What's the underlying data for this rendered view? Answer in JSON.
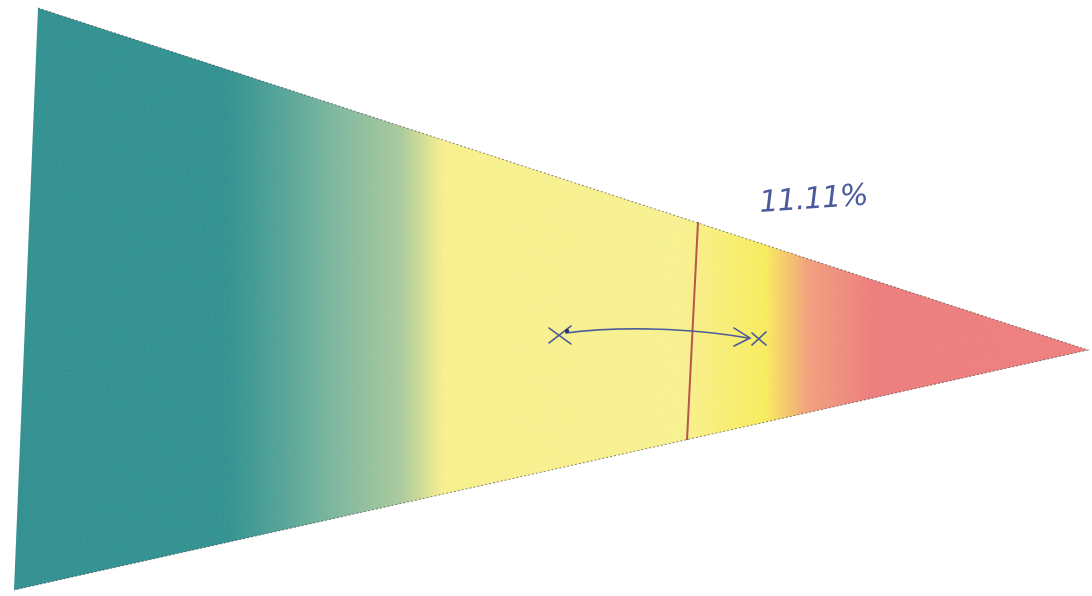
{
  "annotation": {
    "label": "11.11%",
    "value_percent": 11.11
  },
  "colors": {
    "teal": "#1a8c8c",
    "sea_green": "#7fb9a0",
    "yellow": "#fbf48f",
    "bright_yellow": "#fbf060",
    "salmon": "#f0787a",
    "marker_line": "#b8564a",
    "pen_ink": "#4a5a9a"
  },
  "gradient_stops": [
    {
      "color": "#1a8f90",
      "at": 0.0
    },
    {
      "color": "#1f9190",
      "at": 0.2
    },
    {
      "color": "#7db89e",
      "at": 0.3
    },
    {
      "color": "#a9cc9c",
      "at": 0.36
    },
    {
      "color": "#fbf38c",
      "at": 0.4
    },
    {
      "color": "#fbf490",
      "at": 0.62
    },
    {
      "color": "#fbee58",
      "at": 0.7
    },
    {
      "color": "#f4a07a",
      "at": 0.74
    },
    {
      "color": "#f07a7a",
      "at": 0.8
    },
    {
      "color": "#f07e7c",
      "at": 1.0
    }
  ]
}
